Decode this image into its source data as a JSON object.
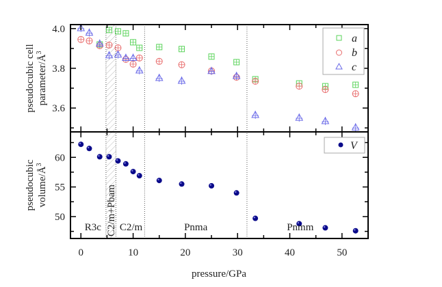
{
  "chart_data": [
    {
      "type": "scatter",
      "panel": "top",
      "ylabel_line1": "pseudocubic cell",
      "ylabel_line2": "parameter/Å",
      "ylabel_sup": "3",
      "ylim": [
        3.48,
        4.02
      ],
      "yticks": [
        3.6,
        3.8,
        4.0
      ],
      "ytick_labels": [
        "3.6",
        "3.8",
        "4.0"
      ],
      "grid": false,
      "legend_position": "top-right",
      "series": [
        {
          "name": "a",
          "marker": "square",
          "color": "#5ad35a",
          "x": [
            3.6,
            5.4,
            7.1,
            8.6,
            10.0,
            11.2,
            15.0,
            19.3,
            25.0,
            29.8,
            33.4,
            41.8,
            46.8,
            52.6
          ],
          "y": [
            3.92,
            3.993,
            3.986,
            3.976,
            3.931,
            3.903,
            3.907,
            3.897,
            3.859,
            3.831,
            3.745,
            3.724,
            3.71,
            3.717
          ]
        },
        {
          "name": "b",
          "marker": "circle",
          "color": "#e86a6a",
          "x": [
            0.0,
            1.6,
            3.6,
            5.4,
            7.1,
            8.6,
            10.0,
            11.2,
            15.0,
            19.3,
            25.0,
            29.8,
            33.4,
            41.8,
            46.8,
            52.6
          ],
          "y": [
            3.945,
            3.938,
            3.914,
            3.917,
            3.903,
            3.845,
            3.821,
            3.852,
            3.835,
            3.818,
            3.787,
            3.755,
            3.735,
            3.71,
            3.693,
            3.672
          ]
        },
        {
          "name": "c",
          "marker": "triangle",
          "color": "#6a6ae8",
          "x": [
            0.0,
            1.6,
            3.6,
            5.4,
            7.1,
            8.6,
            10.0,
            11.2,
            15.0,
            19.3,
            25.0,
            29.8,
            33.4,
            41.8,
            46.8,
            52.6
          ],
          "y": [
            4.003,
            3.98,
            3.925,
            3.866,
            3.87,
            3.853,
            3.853,
            3.79,
            3.752,
            3.738,
            3.787,
            3.762,
            3.566,
            3.552,
            3.535,
            3.503
          ]
        }
      ]
    },
    {
      "type": "scatter",
      "panel": "bottom",
      "ylabel_line1": "pseudocubic",
      "ylabel_line2": "volume/Å",
      "ylabel_sup": "3",
      "ylim": [
        46.3,
        64.3
      ],
      "yticks": [
        50,
        55,
        60
      ],
      "ytick_labels": [
        "50",
        "55",
        "60"
      ],
      "grid": false,
      "legend_position": "top-right",
      "series": [
        {
          "name": "V",
          "marker": "filled-circle",
          "color": "#0a0a8a",
          "x": [
            0.0,
            1.6,
            3.6,
            5.4,
            7.1,
            8.6,
            10.0,
            11.2,
            15.0,
            19.3,
            25.0,
            29.8,
            33.4,
            41.8,
            46.8,
            52.6
          ],
          "y": [
            62.2,
            61.5,
            60.1,
            60.1,
            59.4,
            58.9,
            57.6,
            56.9,
            56.1,
            55.5,
            55.2,
            54.0,
            49.7,
            48.8,
            48.1,
            47.6
          ]
        }
      ],
      "phase_labels": [
        {
          "text": "R3c",
          "x": 2.3,
          "rotated": false
        },
        {
          "text": "C2/m+Pbam",
          "x": 5.7,
          "rotated": true
        },
        {
          "text": "C2/m",
          "x": 9.6,
          "rotated": false
        },
        {
          "text": "Pnma",
          "x": 22.0,
          "rotated": false
        },
        {
          "text": "Pnmm",
          "x": 42.0,
          "rotated": false
        }
      ]
    }
  ],
  "shared_x": {
    "xlabel": "pressure/GPa",
    "xlim": [
      -2.0,
      55.0
    ],
    "xticks": [
      0,
      10,
      20,
      30,
      40,
      50
    ],
    "xtick_labels": [
      "0",
      "10",
      "20",
      "30",
      "40",
      "50"
    ]
  },
  "phase_regions": {
    "hatched_range": [
      4.8,
      6.7
    ],
    "dotted_lines": [
      12.2,
      31.8
    ]
  }
}
